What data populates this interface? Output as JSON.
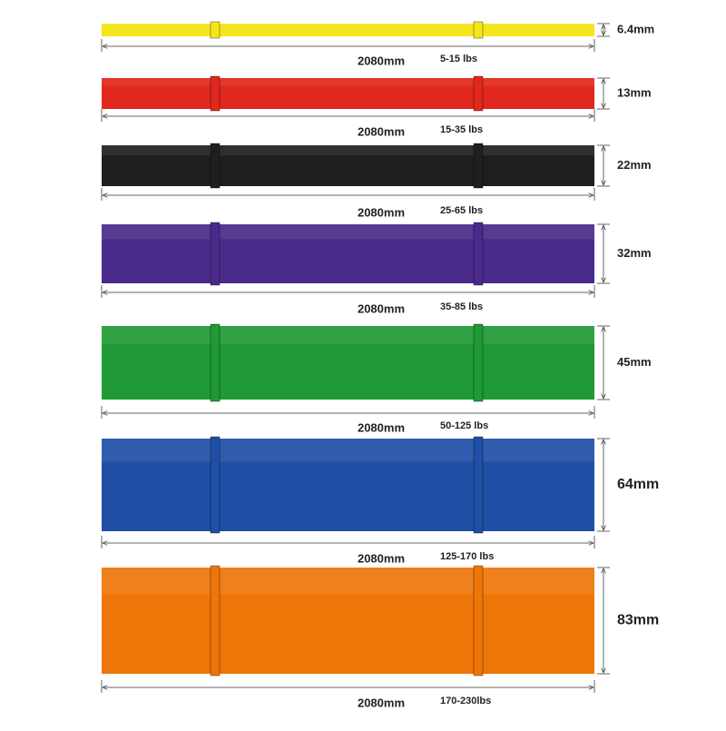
{
  "bands": [
    {
      "thickness": "6.4mm",
      "length": "2080mm",
      "resistance": "5-15 lbs",
      "color": "#f5e41a"
    },
    {
      "thickness": "13mm",
      "length": "2080mm",
      "resistance": "15-35 lbs",
      "color": "#e0281e"
    },
    {
      "thickness": "22mm",
      "length": "2080mm",
      "resistance": "25-65 lbs",
      "color": "#1f1f1f"
    },
    {
      "thickness": "32mm",
      "length": "2080mm",
      "resistance": "35-85 lbs",
      "color": "#4a2a8a"
    },
    {
      "thickness": "45mm",
      "length": "2080mm",
      "resistance": "50-125 lbs",
      "color": "#1f9a36"
    },
    {
      "thickness": "64mm",
      "length": "2080mm",
      "resistance": "125-170 lbs",
      "color": "#1f4fa6"
    },
    {
      "thickness": "83mm",
      "length": "2080mm",
      "resistance": "170-230lbs",
      "color": "#ee7609"
    }
  ]
}
